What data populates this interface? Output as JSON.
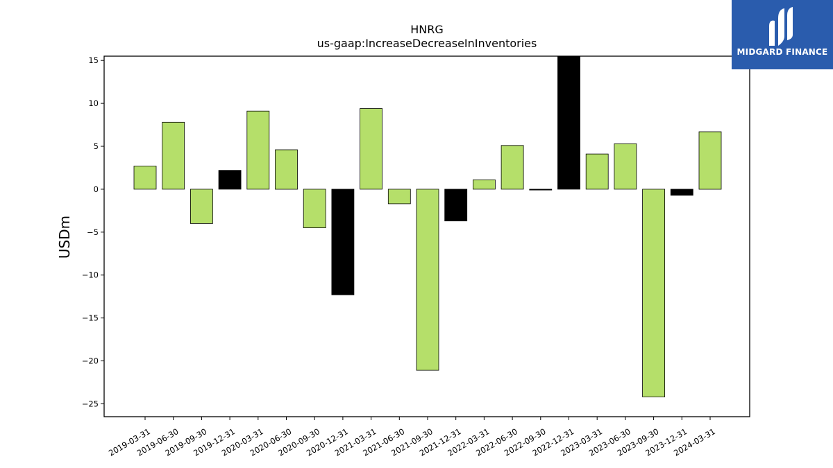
{
  "chart_data": {
    "type": "bar",
    "title": "HNRG",
    "subtitle": "us-gaap:IncreaseDecreaseInInventories",
    "xlabel": "",
    "ylabel": "USDm",
    "ylim": [
      -26.5,
      15.5
    ],
    "yticks": [
      15,
      10,
      5,
      0,
      -5,
      -10,
      -15,
      -20,
      -25
    ],
    "ytick_labels": [
      "15",
      "10",
      "5",
      "0",
      "−5",
      "−10",
      "−15",
      "−20",
      "−25"
    ],
    "grid": false,
    "legend": "none",
    "categories": [
      "2019-03-31",
      "2019-06-30",
      "2019-09-30",
      "2019-12-31",
      "2020-03-31",
      "2020-06-30",
      "2020-09-30",
      "2020-12-31",
      "2021-03-31",
      "2021-06-30",
      "2021-09-30",
      "2021-12-31",
      "2022-03-31",
      "2022-06-30",
      "2022-09-30",
      "2022-12-31",
      "2023-03-31",
      "2023-06-30",
      "2023-09-30",
      "2023-12-31",
      "2024-03-31"
    ],
    "values": [
      2.7,
      7.8,
      -4.0,
      2.2,
      9.1,
      4.6,
      -4.5,
      -12.3,
      9.4,
      -1.7,
      -21.1,
      -3.7,
      1.1,
      5.1,
      -0.1,
      15.5,
      4.1,
      5.3,
      -24.2,
      -0.7,
      6.7
    ],
    "bar_colors": [
      "#b5df6a",
      "#b5df6a",
      "#b5df6a",
      "#000000",
      "#b5df6a",
      "#b5df6a",
      "#b5df6a",
      "#000000",
      "#b5df6a",
      "#b5df6a",
      "#b5df6a",
      "#000000",
      "#b5df6a",
      "#b5df6a",
      "#000000",
      "#000000",
      "#b5df6a",
      "#b5df6a",
      "#b5df6a",
      "#000000",
      "#b5df6a"
    ]
  },
  "logo": {
    "text": "MIDGARD FINANCE",
    "background": "#2a5cad"
  }
}
